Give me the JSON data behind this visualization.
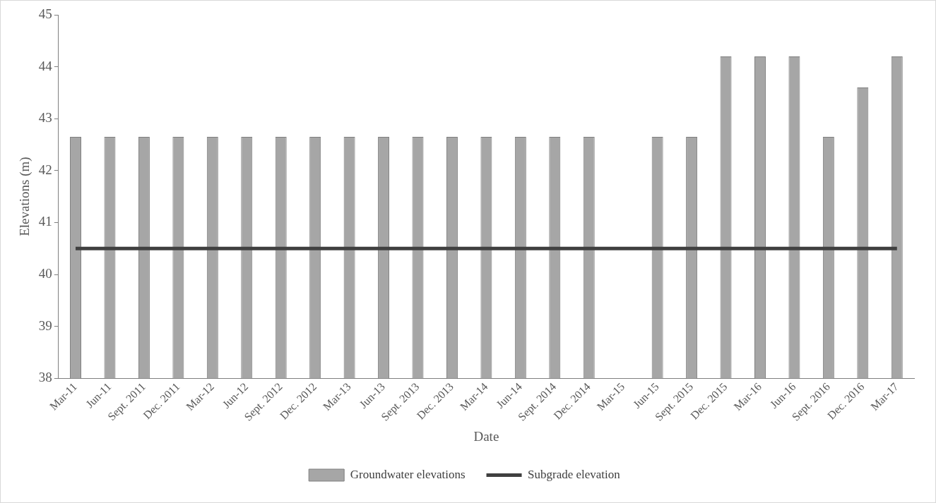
{
  "chart_data": {
    "type": "bar",
    "xlabel": "Date",
    "ylabel": "Elevations (m)",
    "categories": [
      "Mar-11",
      "Jun-11",
      "Sept. 2011",
      "Dec. 2011",
      "Mar-12",
      "Jun-12",
      "Sept. 2012",
      "Dec. 2012",
      "Mar-13",
      "Jun-13",
      "Sept. 2013",
      "Dec. 2013",
      "Mar-14",
      "Jun-14",
      "Sept. 2014",
      "Dec. 2014",
      "Mar-15",
      "Jun-15",
      "Sept. 2015",
      "Dec. 2015",
      "Mar-16",
      "Jun-16",
      "Sept. 2016",
      "Dec. 2016",
      "Mar-17"
    ],
    "series": [
      {
        "name": "Groundwater elevations",
        "color": "#a6a6a6",
        "values": [
          42.65,
          42.65,
          42.65,
          42.65,
          42.65,
          42.65,
          42.65,
          42.65,
          42.65,
          42.65,
          42.65,
          42.65,
          42.65,
          42.65,
          42.65,
          42.65,
          null,
          42.65,
          42.65,
          44.2,
          44.2,
          44.2,
          42.65,
          43.6,
          44.2
        ]
      },
      {
        "name": "Subgrade elevation",
        "type": "line",
        "color": "#404040",
        "values": [
          40.5,
          40.5,
          40.5,
          40.5,
          40.5,
          40.5,
          40.5,
          40.5,
          40.5,
          40.5,
          40.5,
          40.5,
          40.5,
          40.5,
          40.5,
          40.5,
          40.5,
          40.5,
          40.5,
          40.5,
          40.5,
          40.5,
          40.5,
          40.5,
          40.5
        ]
      }
    ],
    "ylim": [
      38,
      45
    ],
    "yticks": [
      38,
      39,
      40,
      41,
      42,
      43,
      44,
      45
    ],
    "grid": false,
    "legend": "bottom",
    "marker": "none",
    "line_style": "solid"
  }
}
